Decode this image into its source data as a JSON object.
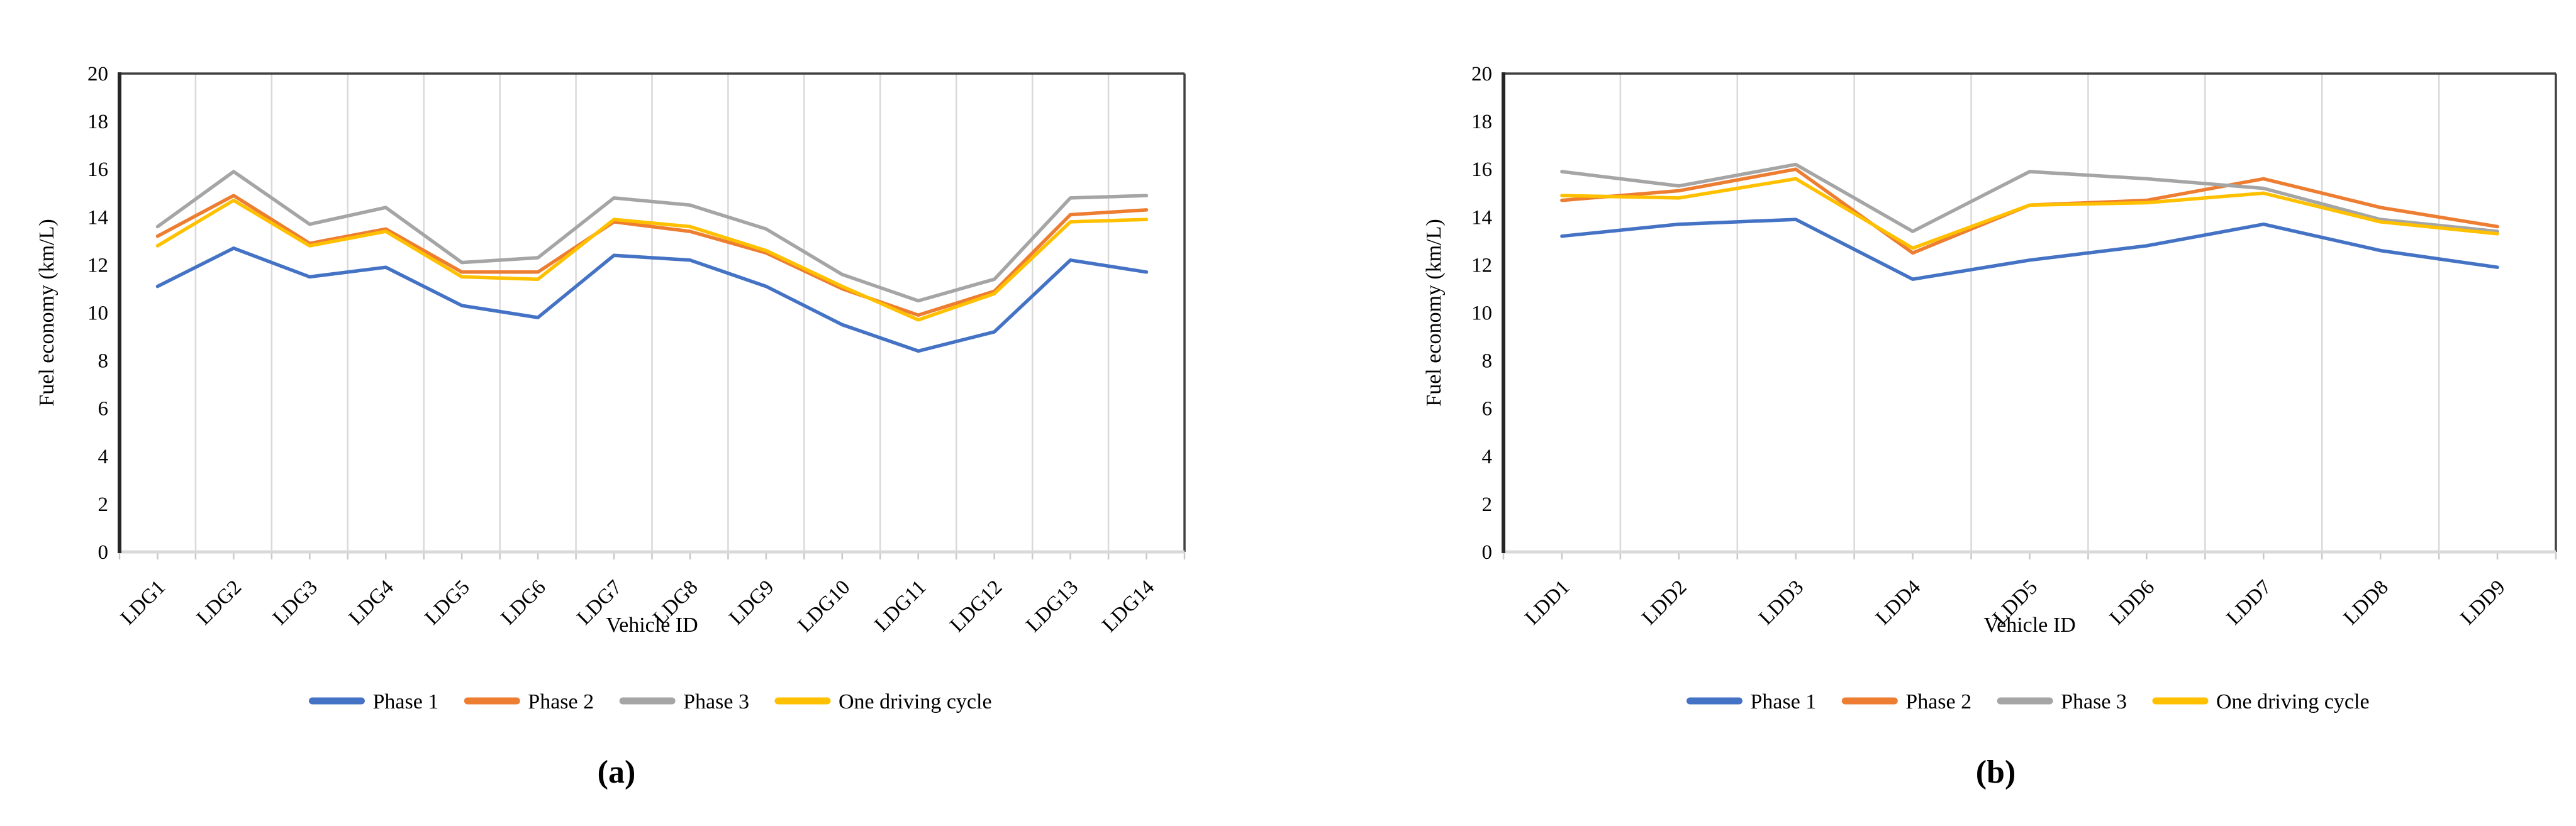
{
  "figure": {
    "background": "#FFFFFF"
  },
  "chart_data": [
    {
      "type": "line",
      "panel_label": "(a)",
      "title": "",
      "xlabel": "Vehicle ID",
      "ylabel": "Fuel economy (km/L)",
      "ylim": [
        0,
        20
      ],
      "yticks": [
        0,
        2,
        4,
        6,
        8,
        10,
        12,
        14,
        16,
        18,
        20
      ],
      "grid": {
        "vertical": true,
        "horizontal": false,
        "color": "#D9D9D9"
      },
      "axis_color": "#262626",
      "border_color": "#404040",
      "baseline_color": "#D9D9D9",
      "legend_position": "bottom",
      "categories": [
        "LDG1",
        "LDG2",
        "LDG3",
        "LDG4",
        "LDG5",
        "LDG6",
        "LDG7",
        "LDG8",
        "LDG9",
        "LDG10",
        "LDG11",
        "LDG12",
        "LDG13",
        "LDG14"
      ],
      "series": [
        {
          "name": "Phase 1",
          "color": "#4472C4",
          "values": [
            11.1,
            12.7,
            11.5,
            11.9,
            10.3,
            9.8,
            12.4,
            12.2,
            11.1,
            9.5,
            8.4,
            9.2,
            12.2,
            11.7
          ]
        },
        {
          "name": "Phase 2",
          "color": "#ED7D31",
          "values": [
            13.2,
            14.9,
            12.9,
            13.5,
            11.7,
            11.7,
            13.8,
            13.4,
            12.5,
            11.0,
            9.9,
            10.9,
            14.1,
            14.3
          ]
        },
        {
          "name": "Phase 3",
          "color": "#A5A5A5",
          "values": [
            13.6,
            15.9,
            13.7,
            14.4,
            12.1,
            12.3,
            14.8,
            14.5,
            13.5,
            11.6,
            10.5,
            11.4,
            14.8,
            14.9
          ]
        },
        {
          "name": "One driving cycle",
          "color": "#FFC000",
          "values": [
            12.8,
            14.7,
            12.8,
            13.4,
            11.5,
            11.4,
            13.9,
            13.6,
            12.6,
            11.1,
            9.7,
            10.8,
            13.8,
            13.9
          ]
        }
      ]
    },
    {
      "type": "line",
      "panel_label": "(b)",
      "title": "",
      "xlabel": "Vehicle ID",
      "ylabel": "Fuel economy (km/L)",
      "ylim": [
        0,
        20
      ],
      "yticks": [
        0,
        2,
        4,
        6,
        8,
        10,
        12,
        14,
        16,
        18,
        20
      ],
      "grid": {
        "vertical": true,
        "horizontal": false,
        "color": "#D9D9D9"
      },
      "axis_color": "#262626",
      "border_color": "#404040",
      "baseline_color": "#D9D9D9",
      "legend_position": "bottom",
      "categories": [
        "LDD1",
        "LDD2",
        "LDD3",
        "LDD4",
        "LDD5",
        "LDD6",
        "LDD7",
        "LDD8",
        "LDD9"
      ],
      "series": [
        {
          "name": "Phase 1",
          "color": "#4472C4",
          "values": [
            13.2,
            13.7,
            13.9,
            11.4,
            12.2,
            12.8,
            13.7,
            12.6,
            11.9
          ]
        },
        {
          "name": "Phase 2",
          "color": "#ED7D31",
          "values": [
            14.7,
            15.1,
            16.0,
            12.5,
            14.5,
            14.7,
            15.6,
            14.4,
            13.6
          ]
        },
        {
          "name": "Phase 3",
          "color": "#A5A5A5",
          "values": [
            15.9,
            15.3,
            16.2,
            13.4,
            15.9,
            15.6,
            15.2,
            13.9,
            13.4
          ]
        },
        {
          "name": "One driving cycle",
          "color": "#FFC000",
          "values": [
            14.9,
            14.8,
            15.6,
            12.7,
            14.5,
            14.6,
            15.0,
            13.8,
            13.3
          ]
        }
      ]
    }
  ]
}
